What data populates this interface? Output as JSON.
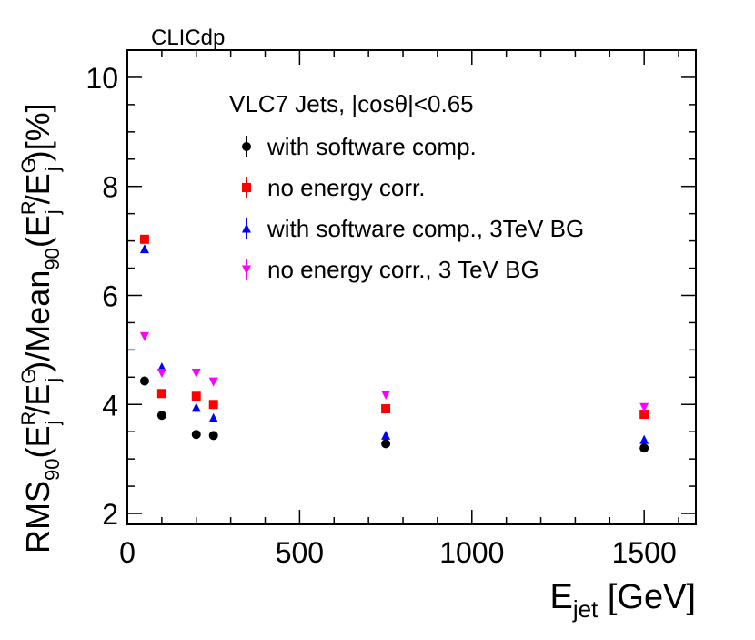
{
  "chart_data": {
    "type": "scatter",
    "label": "CLICdp",
    "title": "VLC7 Jets, |cosθ|<0.65",
    "xlabel": {
      "main": "E",
      "sub": "jet",
      "unit": " [GeV]"
    },
    "ylabel": {
      "p1": "RMS",
      "p1_sub": "90",
      "p2": "(E",
      "p2_sup": "R",
      "p2_sub": "j",
      "p3": "/E",
      "p3_sup": "G",
      "p3_sub": "j",
      "p4": ")/Mean",
      "p4_sub": "90",
      "p5": "(E",
      "p5_sup": "R",
      "p5_sub": "j",
      "p6": "/E",
      "p6_sup": "G",
      "p6_sub": "j",
      "p7": ")[%]"
    },
    "xlim": [
      0,
      1650
    ],
    "ylim": [
      1.8,
      10.5
    ],
    "xticks": [
      0,
      500,
      1000,
      1500
    ],
    "xtick_labels": [
      "0",
      "500",
      "1000",
      "1500"
    ],
    "yticks": [
      2,
      4,
      6,
      8,
      10
    ],
    "ytick_labels": [
      "2",
      "4",
      "6",
      "8",
      "10"
    ],
    "series": [
      {
        "name": "with software comp.",
        "color": "#000000",
        "marker": "circle",
        "x": [
          50,
          100,
          200,
          250,
          750,
          1500
        ],
        "y": [
          4.43,
          3.8,
          3.45,
          3.43,
          3.28,
          3.2
        ]
      },
      {
        "name": "no energy corr.",
        "color": "#ff0000",
        "marker": "square",
        "x": [
          50,
          100,
          200,
          250,
          750,
          1500
        ],
        "y": [
          7.03,
          4.2,
          4.15,
          4.0,
          3.92,
          3.82
        ]
      },
      {
        "name": "with software comp., 3TeV BG",
        "color": "#0000ff",
        "marker": "triangle-up",
        "x": [
          50,
          100,
          200,
          250,
          750,
          1500
        ],
        "y": [
          6.85,
          4.68,
          3.94,
          3.75,
          3.43,
          3.35
        ]
      },
      {
        "name": "no energy corr., 3 TeV BG",
        "color": "#ff00ff",
        "marker": "triangle-down",
        "x": [
          50,
          100,
          200,
          250,
          750,
          1500
        ],
        "y": [
          5.25,
          4.58,
          4.58,
          4.42,
          4.18,
          3.95
        ]
      }
    ]
  }
}
